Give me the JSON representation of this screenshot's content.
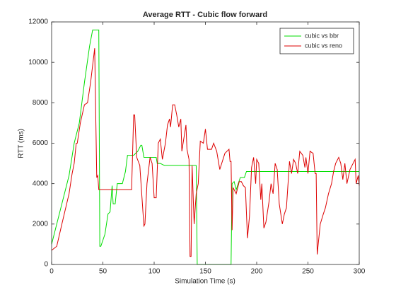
{
  "chart_data": {
    "type": "line",
    "title": "Average RTT - Cubic flow forward",
    "x_label": "Simulation Time (s)",
    "y_label": "RTT (ms)",
    "xlim": [
      0,
      300
    ],
    "xticks": [
      0,
      50,
      100,
      150,
      200,
      250,
      300
    ],
    "ylim": [
      0,
      12000
    ],
    "yticks": [
      0,
      2000,
      4000,
      6000,
      8000,
      10000,
      12000
    ],
    "legend": "upper right",
    "grid": false,
    "series": [
      {
        "name": "cubic vs bbr",
        "color": "#00dd00",
        "x": [
          0,
          17,
          22,
          27,
          32,
          37,
          40,
          46,
          47,
          48,
          52,
          55,
          57,
          59,
          60,
          62,
          64,
          69,
          72,
          74,
          80,
          84,
          87,
          88,
          90,
          102,
          103,
          106,
          110,
          141,
          142,
          175,
          176,
          178,
          180,
          184,
          188,
          190,
          300
        ],
        "values": [
          1000,
          4400,
          6000,
          7000,
          9000,
          10800,
          11600,
          11600,
          900,
          900,
          1500,
          2500,
          2600,
          3900,
          3000,
          3000,
          4000,
          4000,
          4600,
          5400,
          5400,
          5600,
          5900,
          5900,
          5300,
          5300,
          5000,
          5000,
          4900,
          4900,
          0,
          0,
          4000,
          4100,
          3700,
          4300,
          4300,
          4600,
          4600
        ]
      },
      {
        "name": "cubic vs reno",
        "color": "#dd0000",
        "x": [
          0,
          5,
          10,
          17,
          20,
          22,
          24,
          25,
          28,
          32,
          35,
          38,
          42,
          44,
          45,
          46,
          78,
          80,
          81,
          83,
          86,
          90,
          91,
          93,
          96,
          98,
          100,
          102,
          104,
          106,
          108,
          111,
          113,
          115,
          116,
          118,
          120,
          122,
          124,
          126,
          127,
          131,
          132,
          134,
          135,
          136,
          137,
          139,
          141,
          143,
          145,
          148,
          150,
          152,
          156,
          158,
          161,
          164,
          169,
          173,
          174,
          175,
          176,
          177,
          180,
          183,
          185,
          187,
          189,
          191,
          193,
          195,
          197,
          199,
          200,
          202,
          204,
          205,
          207,
          209,
          212,
          214,
          216,
          218,
          220,
          222,
          225,
          227,
          229,
          232,
          234,
          236,
          238,
          240,
          242,
          245,
          247,
          248,
          250,
          252,
          255,
          257,
          258,
          259,
          262,
          265,
          267,
          270,
          273,
          275,
          277,
          280,
          282,
          284,
          286,
          288,
          291,
          294,
          296,
          297,
          299,
          300
        ],
        "values": [
          700,
          900,
          2000,
          3500,
          4500,
          5000,
          6000,
          6000,
          7000,
          7900,
          8000,
          9000,
          10700,
          4300,
          4400,
          3700,
          3700,
          7400,
          7400,
          5300,
          4900,
          1900,
          2000,
          4000,
          5300,
          5000,
          3300,
          3300,
          6000,
          6200,
          5200,
          6000,
          6900,
          7200,
          6800,
          7900,
          7900,
          7400,
          6800,
          7200,
          5600,
          6900,
          5700,
          5200,
          400,
          400,
          4900,
          2000,
          3500,
          4000,
          6100,
          6000,
          6700,
          5700,
          5700,
          6000,
          5600,
          4700,
          5500,
          5700,
          5100,
          5100,
          1700,
          3800,
          3500,
          4100,
          4100,
          3900,
          3800,
          1300,
          2400,
          4800,
          5300,
          4000,
          5200,
          5000,
          3200,
          4000,
          1800,
          2100,
          3100,
          4000,
          3500,
          5000,
          4700,
          3000,
          2000,
          2500,
          2800,
          5100,
          4500,
          5200,
          5000,
          4500,
          5600,
          5400,
          4800,
          5300,
          4500,
          5600,
          5500,
          4500,
          4500,
          500,
          2000,
          2500,
          2800,
          3500,
          4000,
          4600,
          5000,
          5300,
          5000,
          4200,
          5000,
          4000,
          4700,
          5000,
          5200,
          4000,
          4400,
          3900
        ]
      }
    ]
  }
}
